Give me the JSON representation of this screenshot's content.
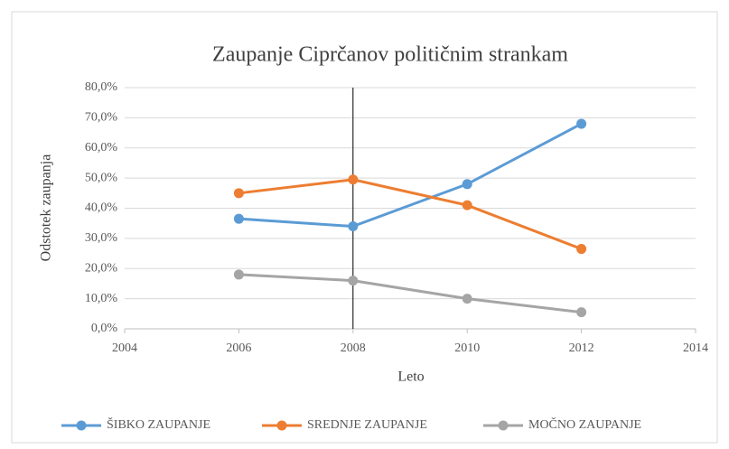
{
  "chart_data": {
    "type": "line",
    "title": "Zaupanje Ciprčanov političnim strankam",
    "x_label": "Leto",
    "y_label": "Odstotek zaupanja",
    "x": [
      2006,
      2008,
      2010,
      2012
    ],
    "series": [
      {
        "name": "ŠIBKO ZAUPANJE",
        "color": "#5b9bd5",
        "values": [
          36.5,
          34,
          48,
          68
        ]
      },
      {
        "name": "SREDNJE ZAUPANJE",
        "color": "#ed7d31",
        "values": [
          45,
          49.5,
          41,
          26.5
        ]
      },
      {
        "name": "MOČNO ZAUPANJE",
        "color": "#a5a5a5",
        "values": [
          18,
          16,
          10,
          5.5
        ]
      }
    ],
    "xlim": [
      2004,
      2014
    ],
    "xticks": [
      2004,
      2006,
      2008,
      2010,
      2012,
      2014
    ],
    "ylim": [
      0,
      80
    ],
    "yticks": [
      {
        "value": 0,
        "label": "0,0%"
      },
      {
        "value": 10,
        "label": "10,0%"
      },
      {
        "value": 20,
        "label": "20,0%"
      },
      {
        "value": 30,
        "label": "30,0%"
      },
      {
        "value": 40,
        "label": "40,0%"
      },
      {
        "value": 50,
        "label": "50,0%"
      },
      {
        "value": 60,
        "label": "60,0%"
      },
      {
        "value": 70,
        "label": "70,0%"
      },
      {
        "value": 80,
        "label": "80,0%"
      }
    ],
    "vline": 2008,
    "grid": true,
    "legend": "bottom"
  }
}
